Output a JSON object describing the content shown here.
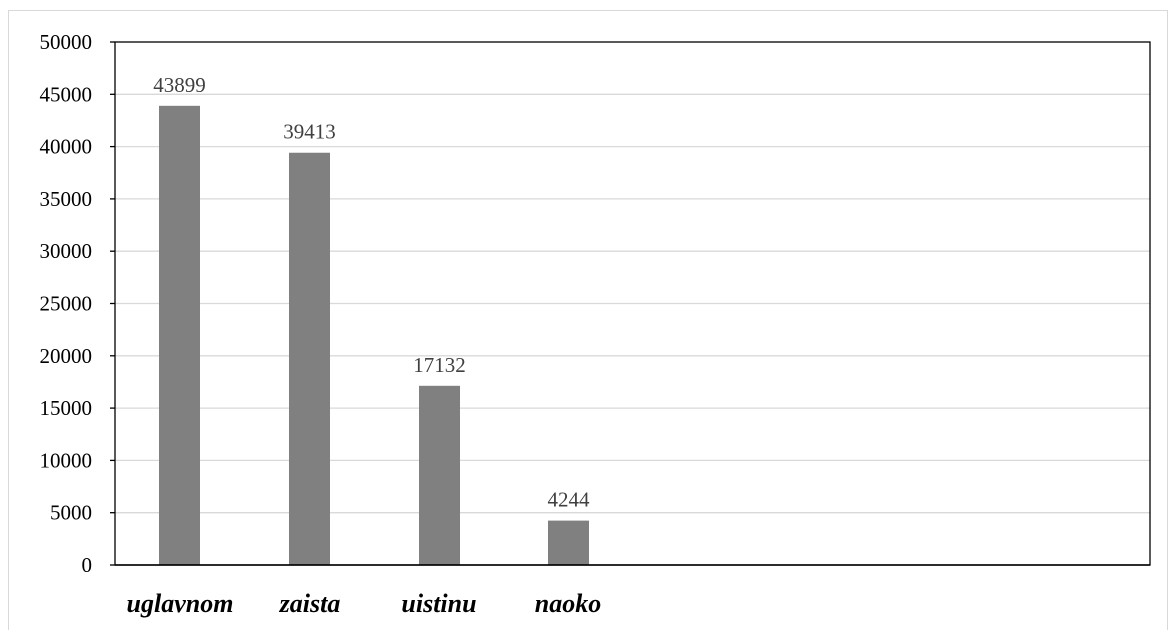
{
  "chart_data": {
    "type": "bar",
    "categories": [
      "uglavnom",
      "zaista",
      "uistinu",
      "naoko"
    ],
    "values": [
      43899,
      39413,
      17132,
      4244
    ],
    "data_labels": [
      "43899",
      "39413",
      "17132",
      "4244"
    ],
    "title": "",
    "xlabel": "",
    "ylabel": "",
    "ylim": [
      0,
      50000
    ],
    "yticks": [
      0,
      5000,
      10000,
      15000,
      20000,
      25000,
      30000,
      35000,
      40000,
      45000,
      50000
    ],
    "ytick_labels": [
      "0",
      "5000",
      "10000",
      "15000",
      "20000",
      "25000",
      "30000",
      "35000",
      "40000",
      "45000",
      "50000"
    ],
    "grid": true,
    "legend": "none",
    "bar_color": "#808080",
    "gridline_color": "#d9d9d9",
    "axis_color": "#000000"
  }
}
